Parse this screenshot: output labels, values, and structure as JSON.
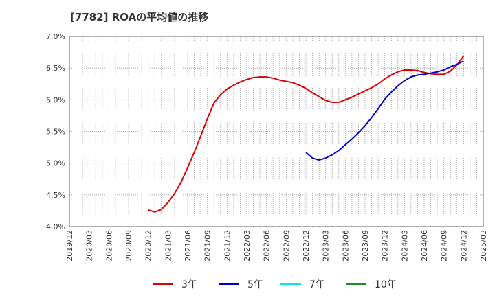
{
  "chart_data": {
    "type": "line",
    "title": "[7782]  ROAの平均値の推移",
    "xlabel": "",
    "ylabel": "",
    "x_ticks": [
      "2019/12",
      "2020/03",
      "2020/06",
      "2020/09",
      "2020/12",
      "2021/03",
      "2021/06",
      "2021/09",
      "2021/12",
      "2022/03",
      "2022/06",
      "2022/09",
      "2022/12",
      "2023/03",
      "2023/06",
      "2023/09",
      "2023/12",
      "2024/03",
      "2024/06",
      "2024/09",
      "2024/12",
      "2025/03"
    ],
    "y_ticks": [
      4.0,
      4.5,
      5.0,
      5.5,
      6.0,
      6.5,
      7.0
    ],
    "y_tick_labels": [
      "4.0%",
      "4.5%",
      "5.0%",
      "5.5%",
      "6.0%",
      "6.5%",
      "7.0%"
    ],
    "ylim": [
      4.0,
      7.0
    ],
    "grid": true,
    "legend_position": "bottom",
    "series": [
      {
        "name": "3年",
        "color": "#dd0000",
        "points": [
          [
            "2020/12",
            4.26
          ],
          [
            "2021/01",
            4.23
          ],
          [
            "2021/02",
            4.27
          ],
          [
            "2021/03",
            4.38
          ],
          [
            "2021/04",
            4.52
          ],
          [
            "2021/05",
            4.7
          ],
          [
            "2021/06",
            4.93
          ],
          [
            "2021/07",
            5.17
          ],
          [
            "2021/08",
            5.43
          ],
          [
            "2021/09",
            5.7
          ],
          [
            "2021/10",
            5.95
          ],
          [
            "2021/11",
            6.08
          ],
          [
            "2021/12",
            6.17
          ],
          [
            "2022/01",
            6.23
          ],
          [
            "2022/02",
            6.28
          ],
          [
            "2022/03",
            6.32
          ],
          [
            "2022/04",
            6.35
          ],
          [
            "2022/05",
            6.36
          ],
          [
            "2022/06",
            6.36
          ],
          [
            "2022/07",
            6.34
          ],
          [
            "2022/08",
            6.31
          ],
          [
            "2022/09",
            6.29
          ],
          [
            "2022/10",
            6.27
          ],
          [
            "2022/11",
            6.23
          ],
          [
            "2022/12",
            6.18
          ],
          [
            "2023/01",
            6.11
          ],
          [
            "2023/02",
            6.05
          ],
          [
            "2023/03",
            5.99
          ],
          [
            "2023/04",
            5.96
          ],
          [
            "2023/05",
            5.96
          ],
          [
            "2023/06",
            6.0
          ],
          [
            "2023/07",
            6.04
          ],
          [
            "2023/08",
            6.09
          ],
          [
            "2023/09",
            6.14
          ],
          [
            "2023/10",
            6.19
          ],
          [
            "2023/11",
            6.25
          ],
          [
            "2023/12",
            6.33
          ],
          [
            "2024/01",
            6.39
          ],
          [
            "2024/02",
            6.44
          ],
          [
            "2024/03",
            6.47
          ],
          [
            "2024/04",
            6.47
          ],
          [
            "2024/05",
            6.46
          ],
          [
            "2024/06",
            6.43
          ],
          [
            "2024/07",
            6.41
          ],
          [
            "2024/08",
            6.4
          ],
          [
            "2024/09",
            6.4
          ],
          [
            "2024/10",
            6.45
          ],
          [
            "2024/11",
            6.55
          ],
          [
            "2024/12",
            6.69
          ]
        ]
      },
      {
        "name": "5年",
        "color": "#0000cc",
        "points": [
          [
            "2022/12",
            5.17
          ],
          [
            "2023/01",
            5.08
          ],
          [
            "2023/02",
            5.05
          ],
          [
            "2023/03",
            5.08
          ],
          [
            "2023/04",
            5.13
          ],
          [
            "2023/05",
            5.2
          ],
          [
            "2023/06",
            5.29
          ],
          [
            "2023/07",
            5.38
          ],
          [
            "2023/08",
            5.48
          ],
          [
            "2023/09",
            5.59
          ],
          [
            "2023/10",
            5.72
          ],
          [
            "2023/11",
            5.86
          ],
          [
            "2023/12",
            6.01
          ],
          [
            "2024/01",
            6.12
          ],
          [
            "2024/02",
            6.22
          ],
          [
            "2024/03",
            6.3
          ],
          [
            "2024/04",
            6.36
          ],
          [
            "2024/05",
            6.39
          ],
          [
            "2024/06",
            6.4
          ],
          [
            "2024/07",
            6.42
          ],
          [
            "2024/08",
            6.44
          ],
          [
            "2024/09",
            6.47
          ],
          [
            "2024/10",
            6.52
          ],
          [
            "2024/11",
            6.56
          ],
          [
            "2024/12",
            6.61
          ]
        ]
      },
      {
        "name": "7年",
        "color": "#00e5ee",
        "points": []
      },
      {
        "name": "10年",
        "color": "#228b22",
        "points": []
      }
    ]
  }
}
